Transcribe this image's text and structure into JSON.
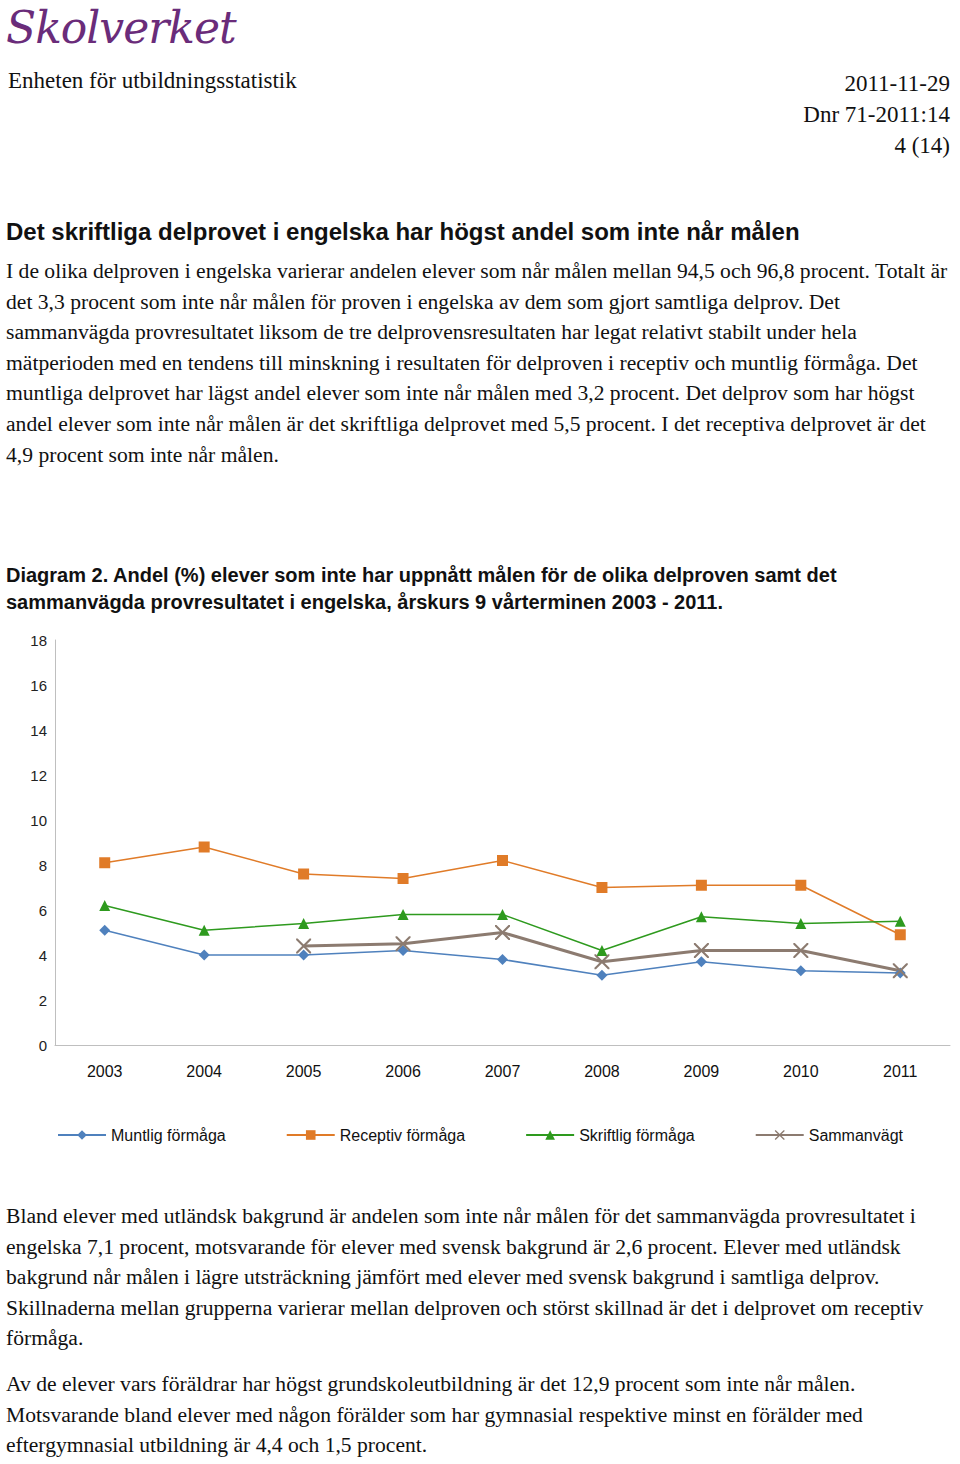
{
  "header": {
    "logo": "Skolverket",
    "unit": "Enheten för utbildningsstatistik",
    "date": "2011-11-29",
    "dnr": "Dnr 71-2011:14",
    "page": "4 (14)"
  },
  "heading": "Det skriftliga delprovet i engelska har högst andel som inte når målen",
  "intro": "I de olika delproven i engelska varierar andelen elever som når målen mellan 94,5 och 96,8 procent. Totalt är det 3,3 procent som inte når målen för proven i engelska av dem som gjort samtliga delprov. Det sammanvägda provresultatet liksom de tre delprovensresultaten har legat relativt stabilt under hela mätperioden med en tendens till minskning i resultaten för delproven i receptiv och muntlig förmåga. Det muntliga delprovet har lägst andel elever som inte når målen med 3,2 procent. Det delprov som har högst andel elever som inte når målen är det skriftliga delprovet med 5,5 procent. I det receptiva delprovet är det 4,9 procent som inte når målen.",
  "caption": {
    "label": "Diagram 2.",
    "text": "Andel (%) elever som inte har uppnått målen för de olika delproven samt det sammanvägda provresultatet i engelska, årskurs 9 vårterminen 2003 - 2011."
  },
  "chart_data": {
    "type": "line",
    "categories": [
      "2003",
      "2004",
      "2005",
      "2006",
      "2007",
      "2008",
      "2009",
      "2010",
      "2011"
    ],
    "series": [
      {
        "name": "Muntlig förmåga",
        "color": "#4f81bd",
        "marker": "diamond",
        "values": [
          5.1,
          4.0,
          4.0,
          4.2,
          3.8,
          3.1,
          3.7,
          3.3,
          3.2
        ]
      },
      {
        "name": "Receptiv förmåga",
        "color": "#e07b28",
        "marker": "square",
        "values": [
          8.1,
          8.8,
          7.6,
          7.4,
          8.2,
          7.0,
          7.1,
          7.1,
          4.9
        ]
      },
      {
        "name": "Skriftlig förmåga",
        "color": "#2e9a1e",
        "marker": "triangle",
        "values": [
          6.2,
          5.1,
          5.4,
          5.8,
          5.8,
          4.2,
          5.7,
          5.4,
          5.5
        ]
      },
      {
        "name": "Sammanvägt",
        "color": "#8c7b70",
        "marker": "x",
        "values": [
          null,
          null,
          4.4,
          4.5,
          5.0,
          3.7,
          4.2,
          4.2,
          3.3
        ]
      }
    ],
    "ylim": [
      0,
      18
    ],
    "yticks": [
      0,
      2,
      4,
      6,
      8,
      10,
      12,
      14,
      16,
      18
    ],
    "grid": false,
    "legend": "bottom"
  },
  "paragraphs_after": [
    "Bland elever med utländsk bakgrund är andelen som inte når målen för det sammanvägda provresultatet i engelska 7,1 procent, motsvarande för elever med svensk bakgrund är 2,6 procent. Elever med utländsk bakgrund når målen i lägre utsträckning jämfört med elever med svensk bakgrund i samtliga delprov. Skillnaderna mellan grupperna varierar mellan delproven och störst skillnad är det i delprovet om receptiv förmåga.",
    "Av de elever vars föräldrar har högst grundskoleutbildning är det 12,9 procent som inte når målen. Motsvarande bland elever med någon förälder som har gymnasial respektive minst en förälder med eftergymnasial utbildning är 4,4 och 1,5 procent."
  ]
}
